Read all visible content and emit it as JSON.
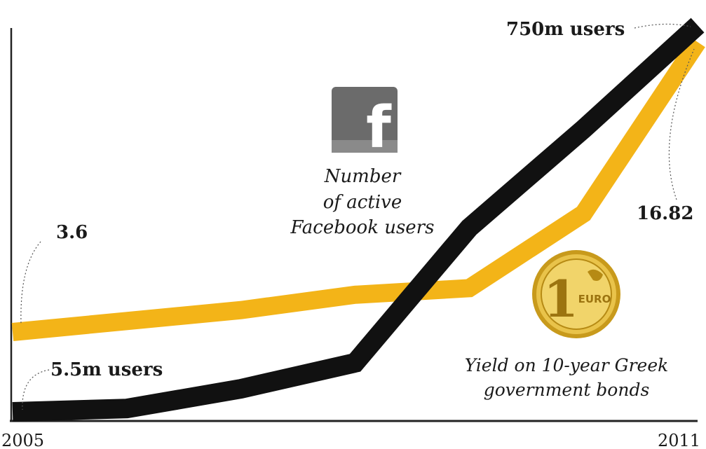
{
  "chart_data": {
    "type": "line",
    "x_start": "2005",
    "x_end": "2011",
    "x": [
      2005,
      2006,
      2007,
      2008,
      2009,
      2010,
      2011
    ],
    "series": [
      {
        "name": "Number of active Facebook users",
        "values": [
          5.5,
          12,
          50,
          100,
          360,
          550,
          750
        ],
        "color": "#111111",
        "start_label": "5.5m users",
        "end_label": "750m users"
      },
      {
        "name": "Yield on 10-year Greek government bonds",
        "values": [
          3.6,
          4.1,
          4.6,
          5.3,
          5.6,
          9.0,
          16.82
        ],
        "color": "#f3b418",
        "start_label": "3.6",
        "end_label": "16.82"
      }
    ],
    "grid": false
  },
  "labels": {
    "fb_line1": "Number",
    "fb_line2": "of active",
    "fb_line3": "Facebook users",
    "bond_line1": "Yield on 10-year Greek",
    "bond_line2": "government bonds",
    "fb_logo_letter": "f",
    "coin_numeral": "1",
    "coin_text": "EURO"
  },
  "icons": [
    "facebook-icon",
    "euro-coin-icon"
  ]
}
